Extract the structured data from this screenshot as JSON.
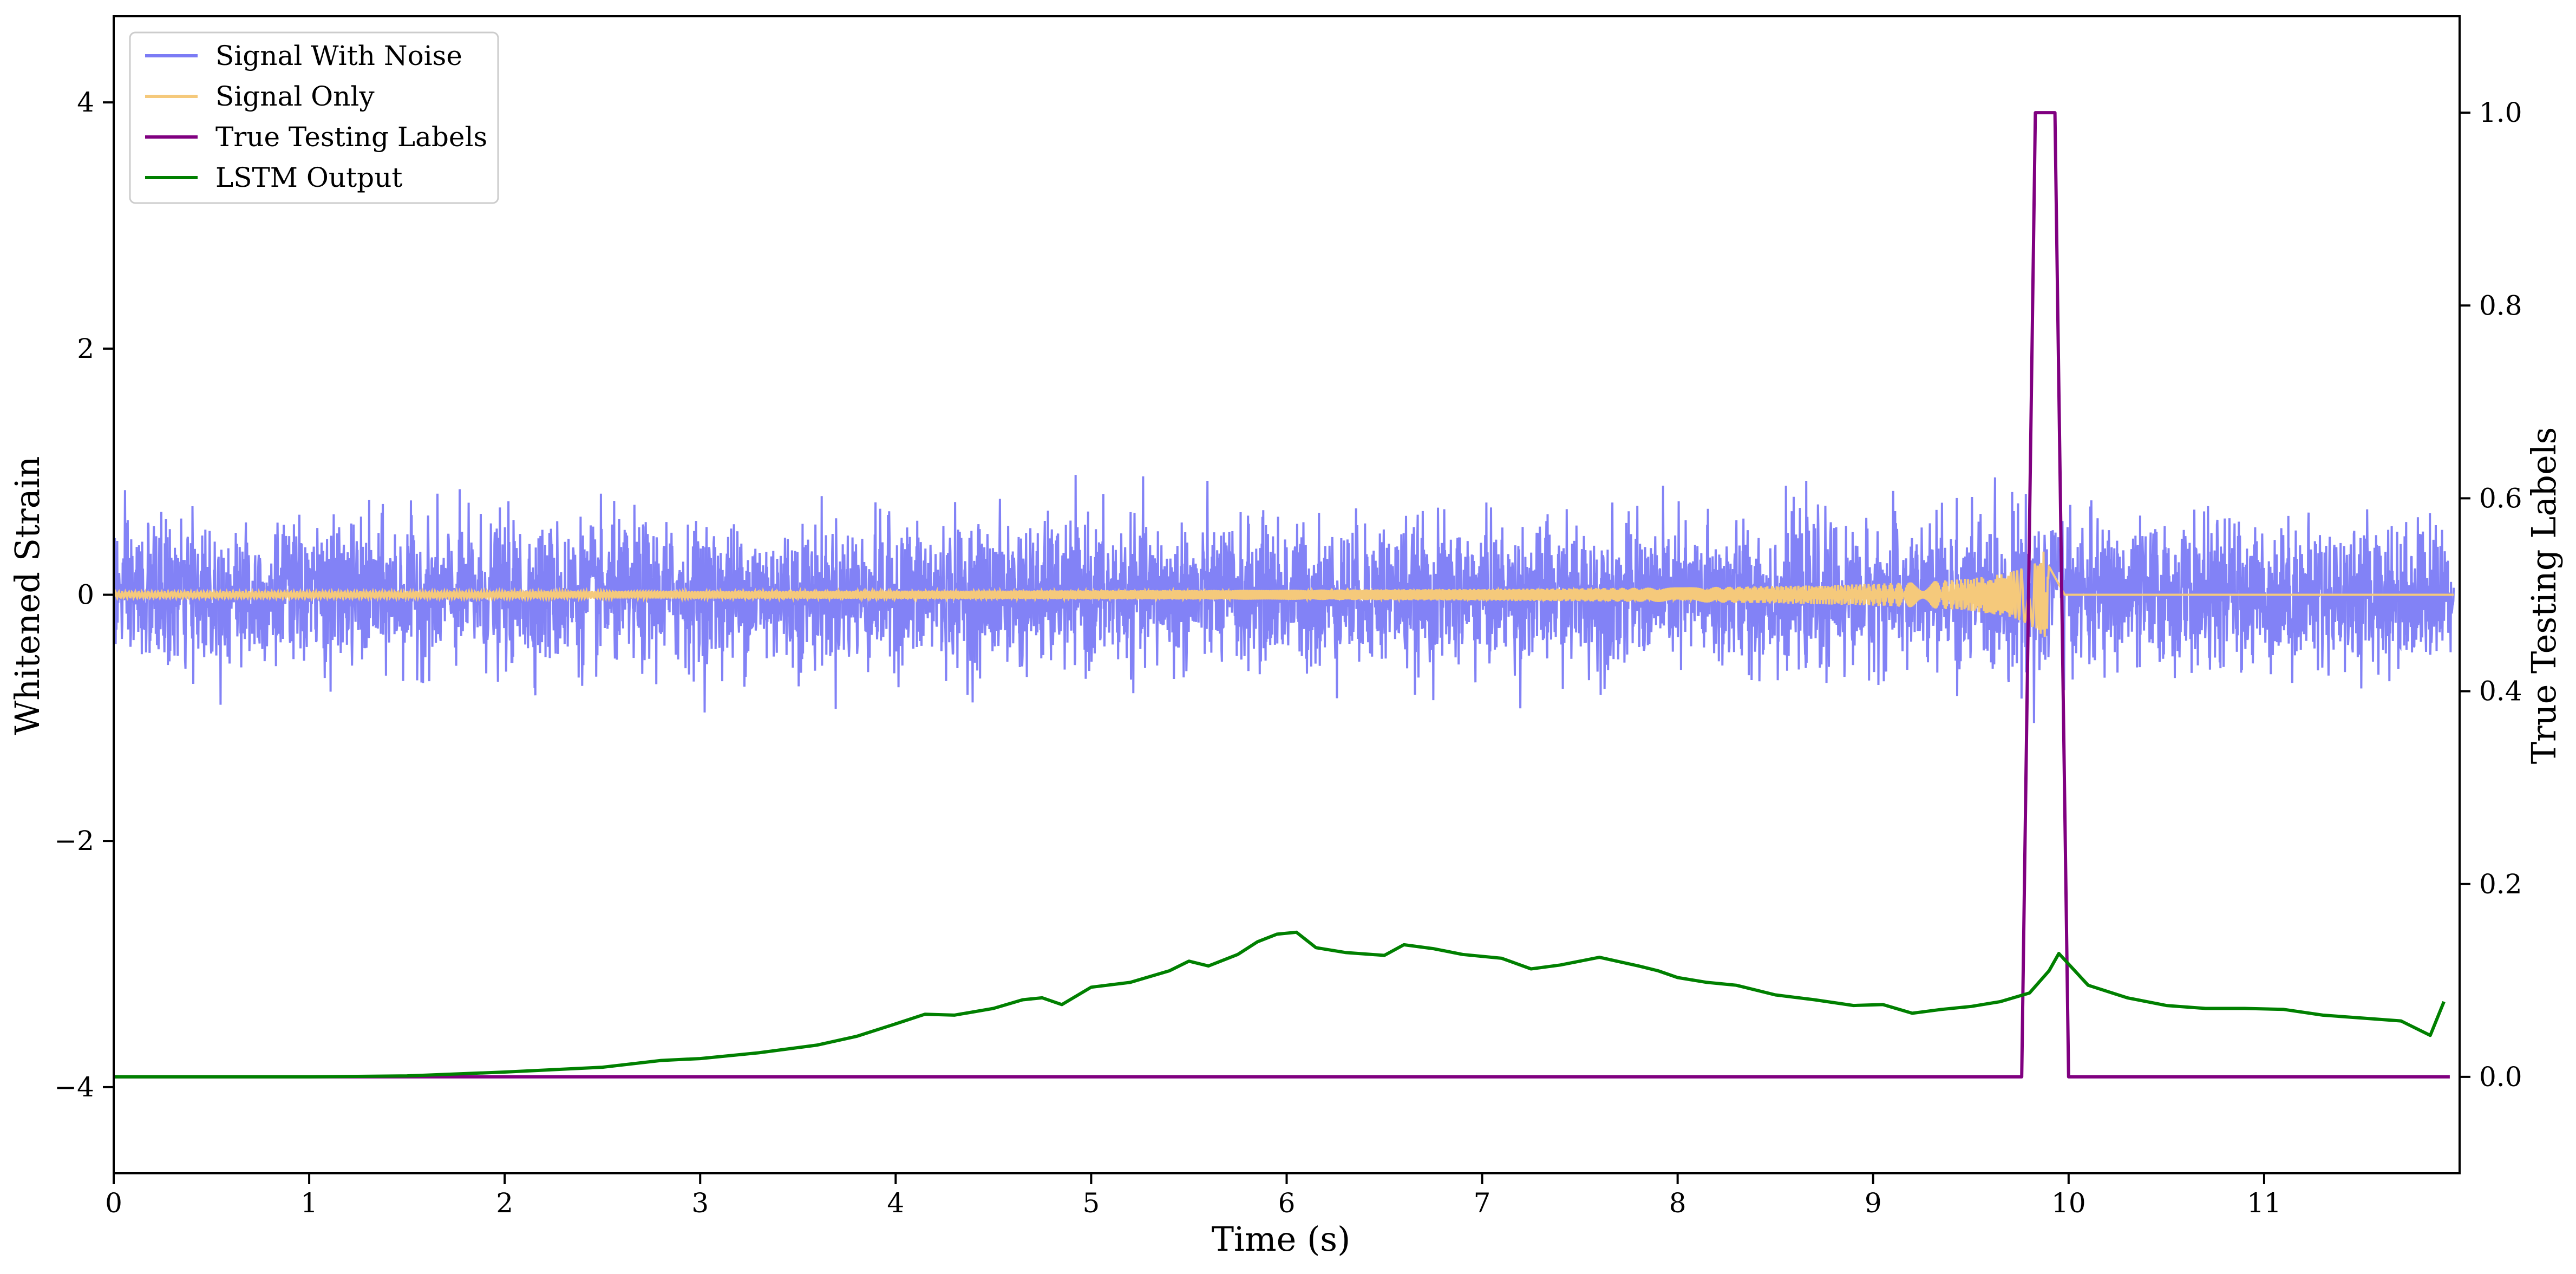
{
  "chart_data": {
    "type": "line",
    "title": "",
    "xlabel": "Time (s)",
    "ylabel": "Whitened Strain",
    "y2label": "True Testing Labels",
    "xlim": [
      0,
      12
    ],
    "ylim": [
      -4.7,
      4.7
    ],
    "y2lim": [
      -0.1,
      1.1
    ],
    "x_ticks": [
      0,
      1,
      2,
      3,
      4,
      5,
      6,
      7,
      8,
      9,
      10,
      11
    ],
    "y_ticks": [
      -4,
      -2,
      0,
      2,
      4
    ],
    "y2_ticks": [
      0.0,
      0.2,
      0.4,
      0.6,
      0.8,
      1.0
    ],
    "grid": false,
    "legend_position": "upper left",
    "series": [
      {
        "name": "Signal With Noise",
        "axis": "left",
        "color": "#7b7bf5",
        "description_type": "noise",
        "noise_amplitude": 0.28,
        "noise_peak": 0.95,
        "samples": 6000
      },
      {
        "name": "Signal Only",
        "axis": "left",
        "color": "#f5c97b",
        "description_type": "chirp",
        "chirp_peak_time": 9.9,
        "chirp_peak_amplitude": 0.45
      },
      {
        "name": "True Testing Labels",
        "axis": "right",
        "color": "#800080",
        "x": [
          0,
          9.76,
          9.83,
          9.93,
          10.0,
          11.95
        ],
        "values": [
          0,
          0,
          1,
          1,
          0,
          0
        ]
      },
      {
        "name": "LSTM Output",
        "axis": "right",
        "color": "#008000",
        "x": [
          0,
          1.0,
          1.5,
          2.0,
          2.5,
          2.8,
          3.0,
          3.3,
          3.6,
          3.8,
          4.0,
          4.15,
          4.3,
          4.5,
          4.65,
          4.75,
          4.85,
          5.0,
          5.2,
          5.4,
          5.5,
          5.6,
          5.75,
          5.85,
          5.95,
          6.05,
          6.15,
          6.3,
          6.5,
          6.6,
          6.75,
          6.9,
          7.1,
          7.25,
          7.4,
          7.6,
          7.8,
          7.9,
          8.0,
          8.15,
          8.3,
          8.5,
          8.7,
          8.9,
          9.05,
          9.2,
          9.35,
          9.5,
          9.65,
          9.8,
          9.9,
          9.95,
          10.1,
          10.3,
          10.5,
          10.7,
          10.9,
          11.1,
          11.3,
          11.5,
          11.7,
          11.85,
          11.92
        ],
        "values": [
          0.0,
          0.0,
          0.001,
          0.005,
          0.01,
          0.017,
          0.019,
          0.025,
          0.033,
          0.042,
          0.055,
          0.065,
          0.064,
          0.071,
          0.08,
          0.082,
          0.075,
          0.093,
          0.098,
          0.11,
          0.12,
          0.115,
          0.127,
          0.14,
          0.148,
          0.15,
          0.134,
          0.129,
          0.126,
          0.137,
          0.133,
          0.127,
          0.123,
          0.112,
          0.116,
          0.124,
          0.115,
          0.11,
          0.103,
          0.098,
          0.095,
          0.085,
          0.08,
          0.074,
          0.075,
          0.066,
          0.07,
          0.073,
          0.078,
          0.087,
          0.11,
          0.128,
          0.095,
          0.082,
          0.074,
          0.071,
          0.071,
          0.07,
          0.064,
          0.061,
          0.058,
          0.043,
          0.078
        ]
      }
    ]
  }
}
